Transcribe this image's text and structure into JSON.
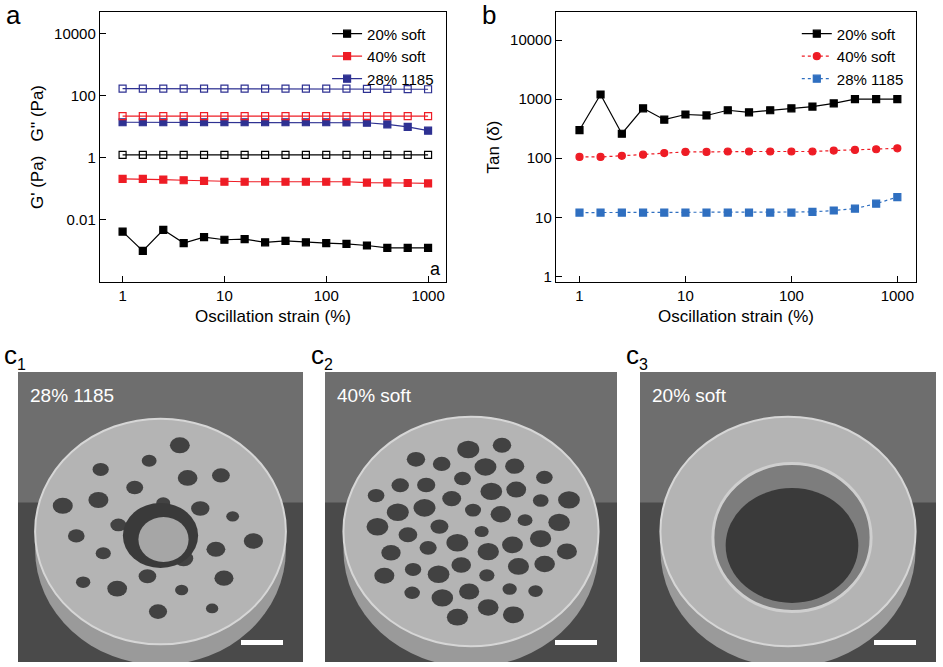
{
  "chart_data": [
    {
      "type": "line",
      "label": "a",
      "annotations": [
        "a"
      ],
      "xlabel": "Oscillation strain (%)",
      "ylabel": "G' (Pa)   G'' (Pa)",
      "log": true,
      "grid": false,
      "legend": "top right",
      "xlim": [
        0.6,
        1500
      ],
      "xticks": [
        1,
        10,
        100,
        1000
      ],
      "ylim": [
        0.0001,
        50000
      ],
      "yticks": [
        0.01,
        1,
        100,
        10000
      ],
      "x": [
        1,
        1.58,
        2.51,
        3.98,
        6.31,
        10,
        15.8,
        25.1,
        39.8,
        63.1,
        100,
        158,
        251,
        398,
        631,
        1000
      ],
      "series": [
        {
          "name": "20% soft",
          "color": "#000000",
          "marker": "square",
          "line_style": "solid",
          "values": [
            0.0042,
            0.001,
            0.0048,
            0.0018,
            0.0028,
            0.0023,
            0.0024,
            0.0019,
            0.0021,
            0.0019,
            0.0018,
            0.0017,
            0.0015,
            0.00125,
            0.00125,
            0.00125
          ]
        },
        {
          "name": "40% soft",
          "color": "#ee1c25",
          "marker": "square",
          "line_style": "solid",
          "values": [
            0.21,
            0.21,
            0.2,
            0.19,
            0.18,
            0.17,
            0.17,
            0.17,
            0.17,
            0.17,
            0.17,
            0.17,
            0.16,
            0.16,
            0.155,
            0.15
          ]
        },
        {
          "name": "28% 1185",
          "color": "#2e3192",
          "marker": "square",
          "line_style": "solid",
          "values": [
            14,
            14,
            14,
            14,
            14,
            14,
            14,
            14,
            14,
            14,
            14,
            13.8,
            13.5,
            12,
            10,
            7.5
          ]
        },
        {
          "color": "#000000",
          "marker": "square-open",
          "line_style": "solid",
          "values": [
            1.25,
            1.25,
            1.25,
            1.25,
            1.25,
            1.25,
            1.25,
            1.25,
            1.25,
            1.25,
            1.25,
            1.25,
            1.25,
            1.25,
            1.25,
            1.25
          ]
        },
        {
          "color": "#ee1c25",
          "marker": "square-open",
          "line_style": "solid",
          "values": [
            22,
            22,
            22,
            22,
            22,
            22,
            22,
            22,
            22,
            22,
            22,
            22,
            22,
            22,
            22,
            22
          ]
        },
        {
          "color": "#2e3192",
          "marker": "square-open",
          "line_style": "solid",
          "values": [
            170,
            170,
            170,
            170,
            170,
            170,
            170,
            170,
            170,
            170,
            170,
            170,
            168,
            166,
            164,
            162
          ]
        }
      ]
    },
    {
      "type": "line",
      "label": "b",
      "xlabel": "Oscillation strain (%)",
      "ylabel": "Tan (δ)",
      "log": true,
      "grid": false,
      "legend": "top right",
      "xlim": [
        0.6,
        1500
      ],
      "xticks": [
        1,
        10,
        100,
        1000
      ],
      "ylim": [
        0.8,
        30000
      ],
      "yticks": [
        1,
        10,
        100,
        1000,
        10000
      ],
      "x": [
        1,
        1.58,
        2.51,
        3.98,
        6.31,
        10,
        15.8,
        25.1,
        39.8,
        63.1,
        100,
        158,
        251,
        398,
        631,
        1000
      ],
      "series": [
        {
          "name": "20% soft",
          "color": "#000000",
          "marker": "square",
          "line_style": "solid",
          "values": [
            300,
            1200,
            260,
            700,
            450,
            550,
            530,
            650,
            600,
            650,
            700,
            750,
            850,
            1000,
            1000,
            1000
          ]
        },
        {
          "name": "40% soft",
          "color": "#ee1c25",
          "marker": "circle",
          "line_style": "dot",
          "values": [
            105,
            105,
            110,
            115,
            122,
            128,
            128,
            130,
            130,
            130,
            130,
            130,
            135,
            138,
            142,
            147
          ]
        },
        {
          "name": "28% 1185",
          "color": "#2f6fc0",
          "marker": "square",
          "line_style": "dot",
          "values": [
            12,
            12,
            12,
            12,
            12,
            12,
            12,
            12,
            12,
            12,
            12,
            12.3,
            13,
            14,
            17,
            22
          ]
        }
      ]
    }
  ],
  "images": {
    "label": "c",
    "panels": [
      {
        "sub": "1",
        "text": "28% 1185"
      },
      {
        "sub": "2",
        "text": "40% soft"
      },
      {
        "sub": "3",
        "text": "20% soft"
      }
    ]
  }
}
